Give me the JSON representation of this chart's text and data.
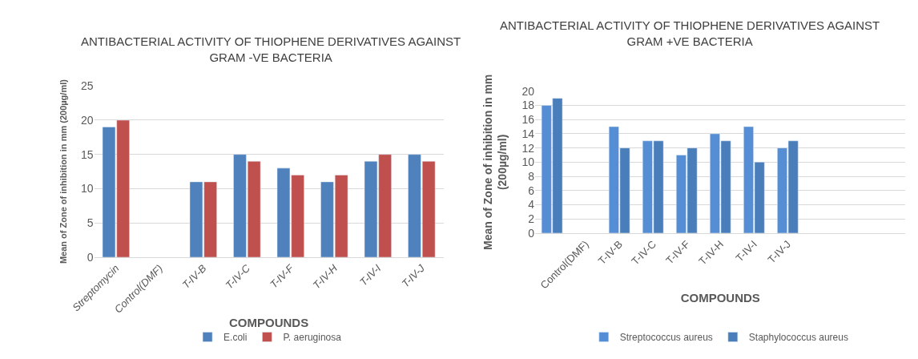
{
  "chart_data": [
    {
      "type": "bar",
      "title": "ANTIBACTERIAL ACTIVITY OF THIOPHENE DERIVATIVES AGAINST\nGRAM -VE BACTERIA",
      "xlabel": "COMPOUNDS",
      "ylabel": "Mean of Zone of inhibition in mm (200µg/ml)",
      "categories": [
        "Streptomycin",
        "Control(DMF)",
        "T-IV-B",
        "T-IV-C",
        "T-IV-F",
        "T-IV-H",
        "T-IV-I",
        "T-IV-J"
      ],
      "series": [
        {
          "name": "E.coli",
          "color": "#4f81bd",
          "values": [
            19,
            null,
            11,
            15,
            13,
            11,
            14,
            15
          ]
        },
        {
          "name": "P. aeruginosa",
          "color": "#c0504d",
          "values": [
            20,
            null,
            11,
            14,
            12,
            12,
            15,
            14
          ]
        }
      ],
      "ylim": [
        0,
        25
      ],
      "yticks": [
        0,
        5,
        10,
        15,
        20,
        25
      ],
      "grid": "y",
      "legend": "bottom"
    },
    {
      "type": "bar",
      "title": "ANTIBACTERIAL ACTIVITY OF THIOPHENE DERIVATIVES AGAINST\nGRAM +VE BACTERIA",
      "xlabel": "COMPOUNDS",
      "ylabel": "Mean of Zone of inhibition in mm\n(200µg/ml)",
      "categories": [
        null,
        "Control(DMF)",
        "T-IV-B",
        "T-IV-C",
        "T-IV-F",
        "T-IV-H",
        "T-IV-I",
        "T-IV-J",
        null,
        null,
        null
      ],
      "series": [
        {
          "name": "Streptococcus aureus",
          "color": "#558ed5",
          "values": [
            18,
            null,
            15,
            13,
            11,
            14,
            15,
            12,
            null,
            null,
            null
          ]
        },
        {
          "name": "Staphylococcus aureus",
          "color": "#4a7ebb",
          "values": [
            19,
            null,
            12,
            13,
            12,
            13,
            10,
            13,
            null,
            null,
            null
          ]
        }
      ],
      "ylim": [
        0,
        20
      ],
      "yticks": [
        0,
        2,
        4,
        6,
        8,
        10,
        12,
        14,
        16,
        18,
        20
      ],
      "grid": "y",
      "legend": "bottom"
    }
  ]
}
